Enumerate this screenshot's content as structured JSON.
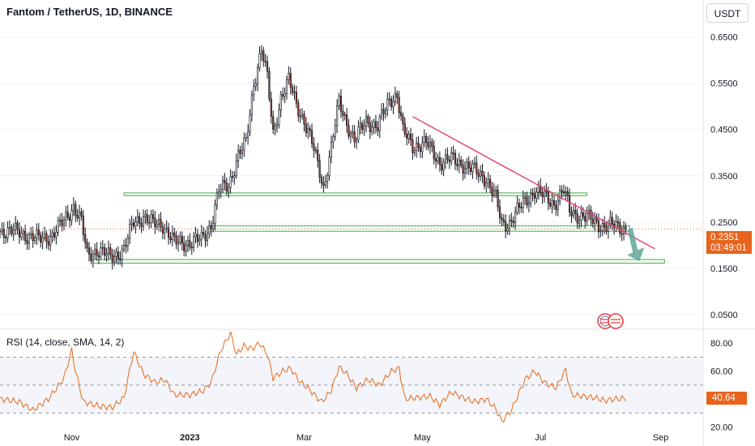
{
  "header": {
    "symbol_title": "Fantom / TetherUS, 1D, BINANCE",
    "currency_button": "USDT"
  },
  "price_tag": {
    "price": "0.2351",
    "countdown": "03:49:01"
  },
  "rsi_panel": {
    "title": "RSI (14, close, SMA, 14, 2)",
    "current_value": "40.64"
  },
  "colors": {
    "up": "#26a69a",
    "down": "#ef5350",
    "candle_body_up": "#ffffff",
    "candle_body_down": "#9b3b2a",
    "wick": "#131722",
    "trendline": "#e0457b",
    "zone": "#4caf50",
    "arrow": "#5fa697",
    "rsi_line": "#e8742c",
    "accent": "#e8631c"
  },
  "chart_data": [
    {
      "type": "candlestick",
      "title": "Fantom / TetherUS, 1D, BINANCE",
      "y_axis": {
        "ticks": [
          "0.6500",
          "0.5500",
          "0.4500",
          "0.3500",
          "0.2500",
          "0.1500",
          "0.0500"
        ],
        "range": [
          0.02,
          0.695
        ]
      },
      "x_axis": {
        "ticks": [
          "Nov",
          "2023",
          "Mar",
          "May",
          "Jul",
          "Sep"
        ]
      },
      "last_price": 0.2351,
      "price_path": [
        [
          "2022-09-25",
          0.232
        ],
        [
          "2022-10-05",
          0.228
        ],
        [
          "2022-10-15",
          0.212
        ],
        [
          "2022-10-22",
          0.222
        ],
        [
          "2022-10-28",
          0.252
        ],
        [
          "2022-11-02",
          0.285
        ],
        [
          "2022-11-06",
          0.25
        ],
        [
          "2022-11-09",
          0.178
        ],
        [
          "2022-11-14",
          0.19
        ],
        [
          "2022-11-21",
          0.174
        ],
        [
          "2022-11-28",
          0.19
        ],
        [
          "2022-12-03",
          0.25
        ],
        [
          "2022-12-08",
          0.262
        ],
        [
          "2022-12-13",
          0.245
        ],
        [
          "2022-12-18",
          0.246
        ],
        [
          "2022-12-24",
          0.205
        ],
        [
          "2023-01-01",
          0.206
        ],
        [
          "2023-01-07",
          0.212
        ],
        [
          "2023-01-12",
          0.245
        ],
        [
          "2023-01-16",
          0.318
        ],
        [
          "2023-01-21",
          0.33
        ],
        [
          "2023-01-26",
          0.395
        ],
        [
          "2023-01-30",
          0.42
        ],
        [
          "2023-02-03",
          0.55
        ],
        [
          "2023-02-07",
          0.625
        ],
        [
          "2023-02-10",
          0.56
        ],
        [
          "2023-02-13",
          0.44
        ],
        [
          "2023-02-17",
          0.52
        ],
        [
          "2023-02-21",
          0.555
        ],
        [
          "2023-02-25",
          0.505
        ],
        [
          "2023-03-01",
          0.47
        ],
        [
          "2023-03-05",
          0.42
        ],
        [
          "2023-03-09",
          0.36
        ],
        [
          "2023-03-11",
          0.325
        ],
        [
          "2023-03-15",
          0.41
        ],
        [
          "2023-03-19",
          0.51
        ],
        [
          "2023-03-23",
          0.465
        ],
        [
          "2023-03-27",
          0.425
        ],
        [
          "2023-04-02",
          0.47
        ],
        [
          "2023-04-08",
          0.455
        ],
        [
          "2023-04-14",
          0.515
        ],
        [
          "2023-04-18",
          0.525
        ],
        [
          "2023-04-21",
          0.445
        ],
        [
          "2023-04-26",
          0.415
        ],
        [
          "2023-05-03",
          0.42
        ],
        [
          "2023-05-10",
          0.38
        ],
        [
          "2023-05-16",
          0.385
        ],
        [
          "2023-05-22",
          0.375
        ],
        [
          "2023-05-28",
          0.36
        ],
        [
          "2023-06-03",
          0.345
        ],
        [
          "2023-06-08",
          0.3
        ],
        [
          "2023-06-11",
          0.245
        ],
        [
          "2023-06-15",
          0.25
        ],
        [
          "2023-06-22",
          0.29
        ],
        [
          "2023-06-28",
          0.318
        ],
        [
          "2023-07-03",
          0.305
        ],
        [
          "2023-07-08",
          0.29
        ],
        [
          "2023-07-13",
          0.318
        ],
        [
          "2023-07-16",
          0.275
        ],
        [
          "2023-07-22",
          0.262
        ],
        [
          "2023-07-28",
          0.254
        ],
        [
          "2023-08-03",
          0.24
        ],
        [
          "2023-08-09",
          0.242
        ],
        [
          "2023-08-14",
          0.235
        ]
      ],
      "annotations": {
        "trendline": [
          [
            "2023-04-26",
            0.478
          ],
          [
            "2023-08-29",
            0.192
          ]
        ],
        "zones": [
          {
            "x0": "2022-11-28",
            "x1": "2023-07-25",
            "y_low": 0.307,
            "y_high": 0.313
          },
          {
            "x0": "2023-01-11",
            "x1": "2023-08-16",
            "y_low": 0.23,
            "y_high": 0.242
          },
          {
            "x0": "2022-11-12",
            "x1": "2023-09-03",
            "y_low": 0.161,
            "y_high": 0.169
          }
        ],
        "arrow": {
          "from": [
            "2023-08-15",
            0.233
          ],
          "to": [
            "2023-08-21",
            0.165
          ]
        },
        "last_price_line": 0.2351
      }
    },
    {
      "type": "line",
      "title": "RSI (14, close, SMA, 14, 2)",
      "y_axis": {
        "ticks": [
          "80.00",
          "60.00",
          "40.00",
          "20.00"
        ],
        "range": [
          18,
          90
        ]
      },
      "bands": {
        "upper": 70,
        "middle": 50,
        "lower": 30
      },
      "last_value": 40.64,
      "rsi_path": [
        [
          "2022-09-25",
          40
        ],
        [
          "2022-10-05",
          38
        ],
        [
          "2022-10-12",
          32
        ],
        [
          "2022-10-20",
          40
        ],
        [
          "2022-10-28",
          55
        ],
        [
          "2022-11-01",
          75
        ],
        [
          "2022-11-03",
          60
        ],
        [
          "2022-11-07",
          38
        ],
        [
          "2022-11-15",
          35
        ],
        [
          "2022-11-22",
          34
        ],
        [
          "2022-11-28",
          41
        ],
        [
          "2022-12-03",
          74
        ],
        [
          "2022-12-08",
          58
        ],
        [
          "2022-12-14",
          52
        ],
        [
          "2022-12-19",
          54
        ],
        [
          "2022-12-24",
          43
        ],
        [
          "2023-01-01",
          43
        ],
        [
          "2023-01-08",
          46
        ],
        [
          "2023-01-12",
          52
        ],
        [
          "2023-01-17",
          75
        ],
        [
          "2023-01-22",
          87
        ],
        [
          "2023-01-25",
          72
        ],
        [
          "2023-01-29",
          78
        ],
        [
          "2023-02-02",
          76
        ],
        [
          "2023-02-06",
          80
        ],
        [
          "2023-02-10",
          72
        ],
        [
          "2023-02-13",
          55
        ],
        [
          "2023-02-18",
          60
        ],
        [
          "2023-02-22",
          62
        ],
        [
          "2023-02-27",
          52
        ],
        [
          "2023-03-03",
          48
        ],
        [
          "2023-03-07",
          42
        ],
        [
          "2023-03-10",
          38
        ],
        [
          "2023-03-15",
          46
        ],
        [
          "2023-03-19",
          63
        ],
        [
          "2023-03-23",
          58
        ],
        [
          "2023-03-28",
          48
        ],
        [
          "2023-04-03",
          54
        ],
        [
          "2023-04-09",
          50
        ],
        [
          "2023-04-15",
          60
        ],
        [
          "2023-04-19",
          62
        ],
        [
          "2023-04-22",
          40
        ],
        [
          "2023-04-28",
          41
        ],
        [
          "2023-05-05",
          42
        ],
        [
          "2023-05-10",
          36
        ],
        [
          "2023-05-16",
          45
        ],
        [
          "2023-05-22",
          41
        ],
        [
          "2023-05-28",
          38
        ],
        [
          "2023-06-03",
          40
        ],
        [
          "2023-06-08",
          33
        ],
        [
          "2023-06-11",
          24
        ],
        [
          "2023-06-16",
          32
        ],
        [
          "2023-06-23",
          54
        ],
        [
          "2023-06-28",
          60
        ],
        [
          "2023-07-03",
          52
        ],
        [
          "2023-07-09",
          48
        ],
        [
          "2023-07-14",
          61
        ],
        [
          "2023-07-17",
          43
        ],
        [
          "2023-07-23",
          42
        ],
        [
          "2023-07-29",
          41
        ],
        [
          "2023-08-03",
          39
        ],
        [
          "2023-08-09",
          40
        ],
        [
          "2023-08-14",
          40.64
        ]
      ]
    }
  ]
}
